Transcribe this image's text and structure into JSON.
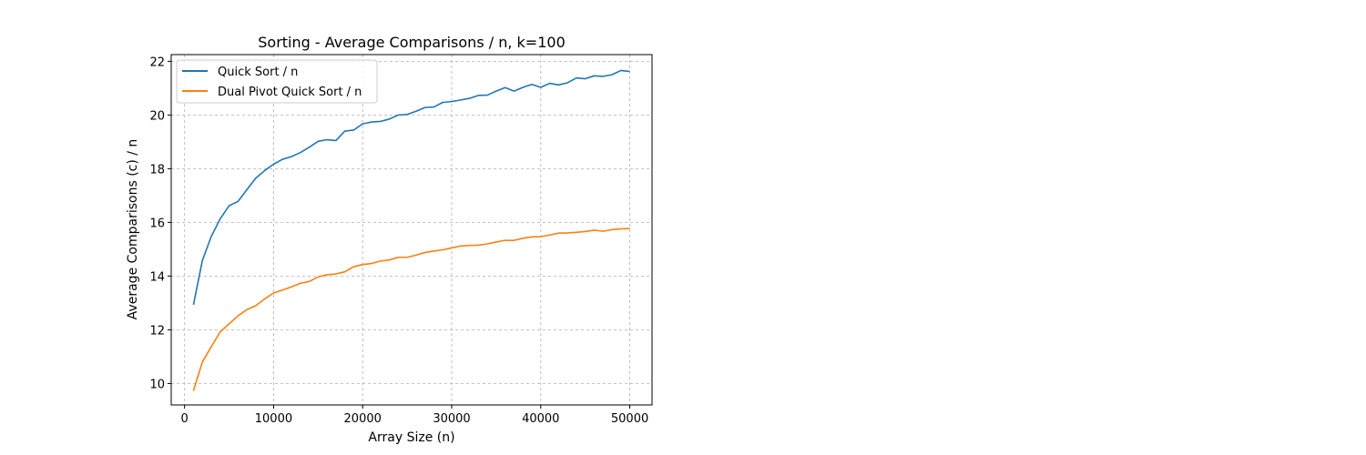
{
  "chart_data": {
    "type": "line",
    "title": "Sorting - Average Comparisons / n, k=100",
    "xlabel": "Array Size (n)",
    "ylabel": "Average Comparisons (c) / n",
    "xlim": [
      -1500,
      52500
    ],
    "ylim": [
      9.2,
      22.25
    ],
    "xticks": [
      0,
      10000,
      20000,
      30000,
      40000,
      50000
    ],
    "yticks": [
      10,
      12,
      14,
      16,
      18,
      20,
      22
    ],
    "grid": true,
    "legend_position": "top-left",
    "x": [
      1000,
      2000,
      3000,
      4000,
      5000,
      6000,
      7000,
      8000,
      9000,
      10000,
      11000,
      12000,
      13000,
      14000,
      15000,
      16000,
      17000,
      18000,
      19000,
      20000,
      21000,
      22000,
      23000,
      24000,
      25000,
      26000,
      27000,
      28000,
      29000,
      30000,
      31000,
      32000,
      33000,
      34000,
      35000,
      36000,
      37000,
      38000,
      39000,
      40000,
      41000,
      42000,
      43000,
      44000,
      45000,
      46000,
      47000,
      48000,
      49000,
      50000
    ],
    "series": [
      {
        "name": "Quick Sort / n",
        "color": "#1f77b4",
        "values": [
          12.93,
          14.58,
          15.48,
          16.13,
          16.62,
          16.78,
          17.22,
          17.65,
          17.93,
          18.17,
          18.35,
          18.45,
          18.6,
          18.8,
          19.02,
          19.08,
          19.05,
          19.4,
          19.44,
          19.67,
          19.74,
          19.76,
          19.85,
          20.0,
          20.02,
          20.14,
          20.28,
          20.3,
          20.47,
          20.5,
          20.56,
          20.62,
          20.73,
          20.74,
          20.89,
          21.02,
          20.89,
          21.03,
          21.14,
          21.03,
          21.18,
          21.12,
          21.2,
          21.38,
          21.35,
          21.46,
          21.44,
          21.5,
          21.66,
          21.62
        ]
      },
      {
        "name": "Dual Pivot Quick Sort / n",
        "color": "#ff7f0e",
        "values": [
          9.73,
          10.8,
          11.37,
          11.92,
          12.22,
          12.52,
          12.75,
          12.9,
          13.15,
          13.37,
          13.48,
          13.6,
          13.73,
          13.8,
          13.97,
          14.05,
          14.08,
          14.16,
          14.35,
          14.43,
          14.47,
          14.56,
          14.6,
          14.7,
          14.7,
          14.78,
          14.88,
          14.93,
          14.98,
          15.05,
          15.12,
          15.14,
          15.15,
          15.2,
          15.27,
          15.33,
          15.33,
          15.41,
          15.46,
          15.47,
          15.53,
          15.6,
          15.61,
          15.63,
          15.66,
          15.71,
          15.67,
          15.73,
          15.76,
          15.77
        ]
      }
    ]
  }
}
